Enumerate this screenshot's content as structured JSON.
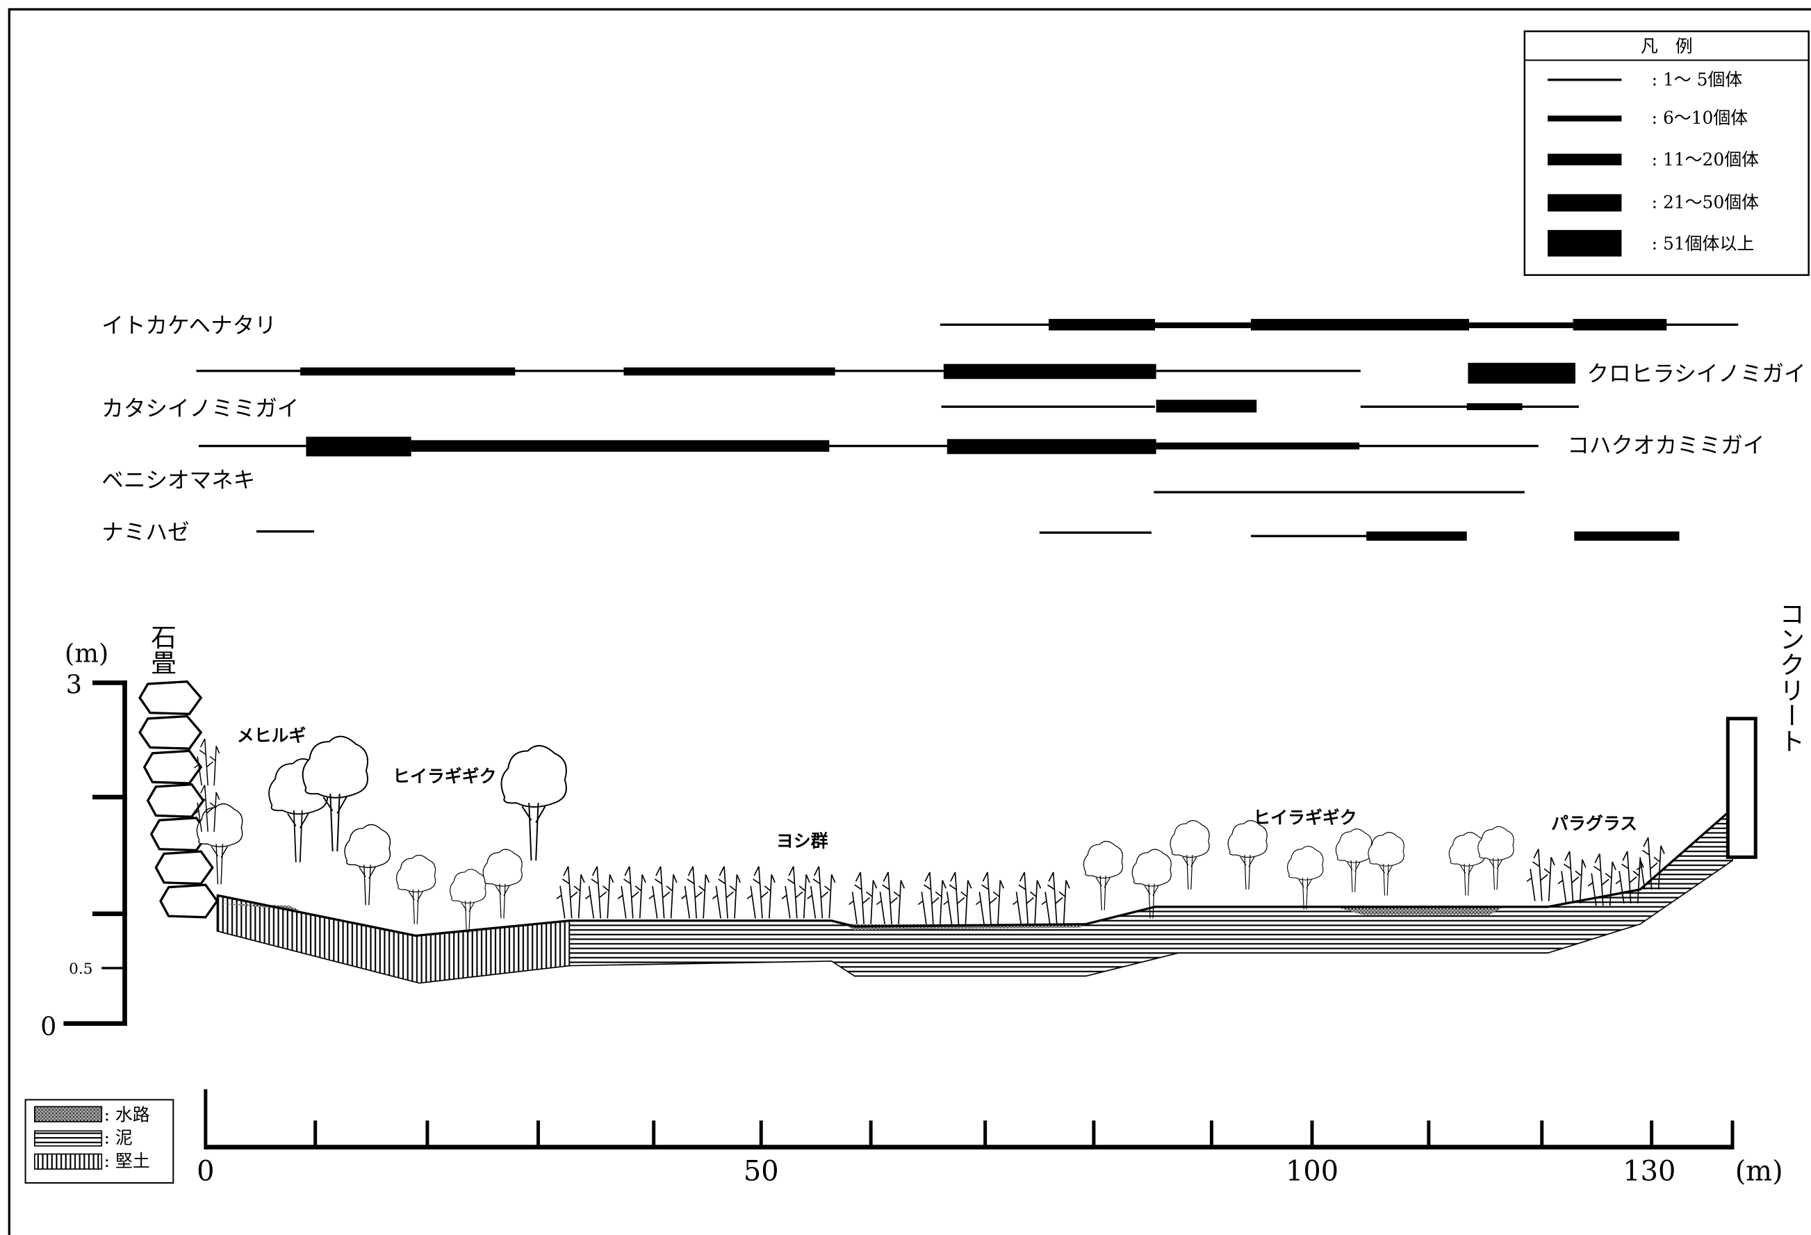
{
  "legend": {
    "title": "凡　例",
    "items": [
      ": 1〜 5個体",
      ":  6〜10個体",
      ": 11〜20個体",
      ": 21〜50個体",
      ": 51個体以上"
    ]
  },
  "species": {
    "left": [
      "イトカケヘナタリ",
      "カタシイノミミガイ",
      "ベニシオマネキ",
      "ナミハゼ"
    ],
    "right": [
      "クロヒラシイノミガイ",
      "コハクオカミミガイ"
    ]
  },
  "profile": {
    "y_unit": "(m)",
    "y_labels": [
      "3",
      "0.5",
      "0"
    ],
    "x_labels": [
      "0",
      "50",
      "100",
      "130"
    ],
    "x_unit": "(m)",
    "stone_wall": "石畳",
    "concrete": "コンクリート",
    "vegetation": [
      "メヒルギ",
      "ヒイラギギク",
      "ヨシ群",
      "ヒイラギギク",
      "パラグラス"
    ]
  },
  "soil_legend": [
    ": 水路",
    ": 泥",
    ": 堅土"
  ]
}
